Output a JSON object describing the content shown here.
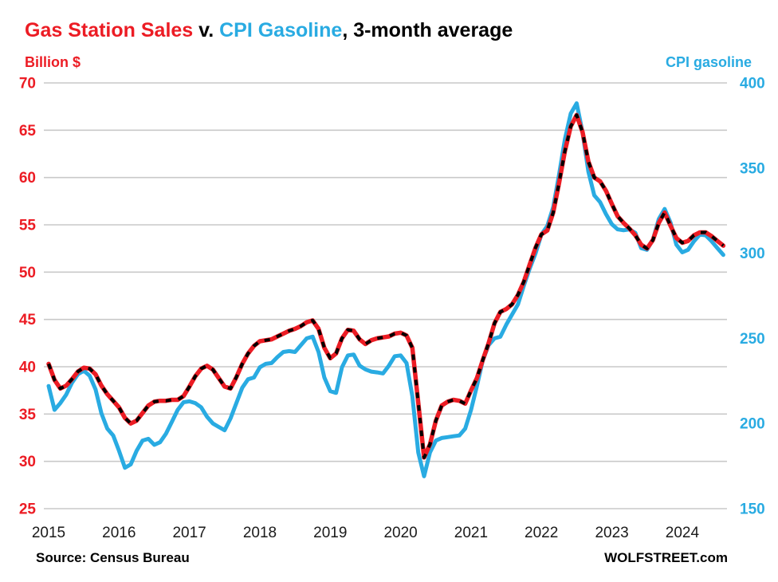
{
  "title": {
    "part1": "Gas Station Sales",
    "part2": " v. ",
    "part3": "CPI Gasoline",
    "part4": ", 3-month average"
  },
  "left_axis_header": "Billion $",
  "right_axis_header": "CPI gasoline",
  "footer": {
    "source": "Source: Census Bureau",
    "site": "WOLFSTREET.com"
  },
  "colors": {
    "red": "#ec1c24",
    "blue": "#29abe2",
    "dash_overlay": "#000000",
    "grid": "#c9c9c9",
    "year_label": "#1a1a1a"
  },
  "chart_data": {
    "type": "line",
    "title": "Gas Station Sales v. CPI Gasoline, 3-month average",
    "frequency": "monthly",
    "start_month": "2015-01",
    "end_month": "2024-08",
    "grid": "horizontal-only",
    "legend_position": "color-coded-title",
    "x_tick_labels": [
      "2015",
      "2016",
      "2017",
      "2018",
      "2019",
      "2020",
      "2021",
      "2022",
      "2023",
      "2024"
    ],
    "left_axis": {
      "label": "Billion $",
      "color": "#ec1c24",
      "range": [
        25,
        70
      ],
      "ticks": [
        70,
        65,
        60,
        55,
        50,
        45,
        40,
        35,
        30,
        25
      ]
    },
    "right_axis": {
      "label": "CPI gasoline",
      "color": "#29abe2",
      "range": [
        150,
        400
      ],
      "ticks": [
        400,
        350,
        300,
        250,
        200,
        150
      ]
    },
    "series": [
      {
        "name": "Gas Station Sales",
        "axis": "left",
        "color": "#ec1c24",
        "style": "solid-with-black-dashes",
        "values": [
          40.3,
          38.6,
          37.7,
          38.0,
          38.7,
          39.5,
          39.9,
          39.8,
          39.2,
          38.0,
          37.1,
          36.4,
          35.7,
          34.6,
          34.0,
          34.3,
          35.1,
          35.9,
          36.3,
          36.4,
          36.4,
          36.5,
          36.5,
          36.9,
          37.9,
          39.0,
          39.8,
          40.1,
          39.7,
          38.8,
          37.9,
          37.7,
          38.9,
          40.3,
          41.4,
          42.2,
          42.7,
          42.8,
          42.9,
          43.2,
          43.5,
          43.8,
          44.0,
          44.3,
          44.7,
          44.9,
          44.0,
          42.0,
          40.9,
          41.4,
          43.0,
          43.9,
          43.8,
          42.9,
          42.4,
          42.8,
          43.0,
          43.1,
          43.2,
          43.5,
          43.6,
          43.3,
          42.0,
          36.2,
          30.4,
          31.8,
          34.3,
          35.9,
          36.3,
          36.5,
          36.4,
          36.1,
          37.5,
          38.8,
          40.7,
          42.5,
          44.6,
          45.8,
          46.1,
          46.6,
          47.6,
          49.0,
          50.8,
          52.6,
          54.0,
          54.4,
          56.3,
          59.4,
          62.8,
          65.4,
          66.6,
          64.8,
          61.7,
          60.0,
          59.6,
          58.6,
          57.2,
          55.9,
          55.2,
          54.6,
          53.9,
          52.9,
          52.5,
          53.4,
          55.2,
          56.3,
          54.9,
          53.6,
          53.1,
          53.3,
          53.9,
          54.2,
          54.2,
          53.8,
          53.3,
          52.8
        ]
      },
      {
        "name": "CPI Gasoline",
        "axis": "right",
        "color": "#29abe2",
        "style": "solid",
        "values": [
          222,
          208,
          212,
          217,
          224,
          229,
          231,
          228,
          220,
          206,
          197,
          193,
          184,
          174,
          176,
          184,
          190,
          191,
          187.5,
          189,
          194,
          201,
          208,
          212.5,
          213,
          212,
          209.5,
          204,
          200,
          198,
          196,
          203,
          212,
          221,
          226,
          227,
          233,
          235,
          235.5,
          239,
          242,
          242.5,
          242,
          246,
          250,
          251,
          242,
          227,
          219,
          218,
          233,
          240,
          240.5,
          234,
          231.8,
          230.5,
          230,
          229.4,
          234,
          239.5,
          240,
          235.5,
          216,
          183,
          169,
          183,
          190,
          191.5,
          192,
          192.5,
          193,
          197,
          208,
          222,
          237,
          246,
          250,
          251,
          258,
          264,
          270,
          281,
          291,
          300,
          311,
          316,
          327,
          346,
          367,
          382,
          388,
          371,
          348,
          334,
          330,
          323,
          317,
          314,
          313.5,
          314,
          312,
          303,
          302,
          308,
          320,
          326,
          318,
          305,
          300.5,
          302,
          307,
          311,
          310.5,
          307,
          303,
          299
        ]
      }
    ]
  }
}
